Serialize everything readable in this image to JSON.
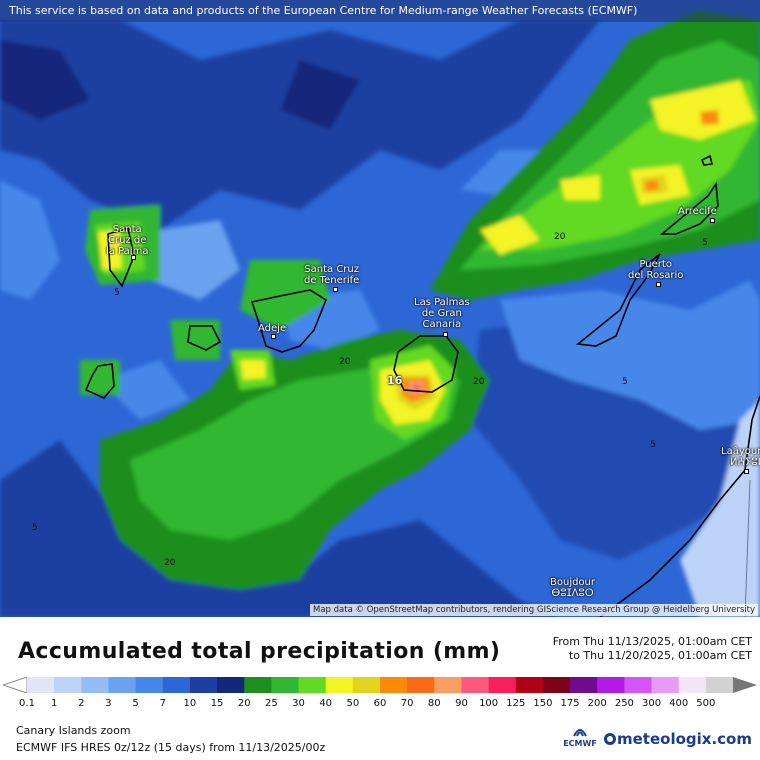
{
  "banner": {
    "text": "This service is based on data and products of the European Centre for Medium-range Weather Forecasts (ECMWF)"
  },
  "map": {
    "attribution": "Map data © OpenStreetMap contributors, rendering GIScience Research Group @ Heidelberg University",
    "cities": [
      {
        "id": "santa-cruz-de-la-palma",
        "label": "Santa\nCruz de\nla Palma"
      },
      {
        "id": "santa-cruz-de-tenerife",
        "label": "Santa Cruz\nde Tenerife"
      },
      {
        "id": "adeje",
        "label": "Adeje"
      },
      {
        "id": "las-palmas",
        "label": "Las Palmas\nde Gran\nCanaria"
      },
      {
        "id": "arrecife",
        "label": "Arrecife"
      },
      {
        "id": "puerto-del-rosario",
        "label": "Puerto\ndel Rosario"
      },
      {
        "id": "laayoune",
        "label": "Laâyoune\nⵍⵄⵢⵓⵏ"
      },
      {
        "id": "boujdour",
        "label": "Boujdour\nⴱⵓⵊⴷⵓⵔ"
      }
    ],
    "isoline_labels": [
      "20",
      "5",
      "20",
      "20",
      "5",
      "5",
      "5",
      "20",
      "5",
      "20"
    ],
    "marker_label": "16"
  },
  "legend": {
    "title": "Accumulated total precipitation (mm)",
    "from": "From Thu 11/13/2025, 01:00am CET",
    "to": "to Thu 11/20/2025, 01:00am CET",
    "ticks": [
      "0.1",
      "1",
      "2",
      "3",
      "5",
      "7",
      "10",
      "15",
      "20",
      "25",
      "30",
      "40",
      "50",
      "60",
      "70",
      "80",
      "90",
      "100",
      "125",
      "150",
      "175",
      "200",
      "250",
      "300",
      "400",
      "500"
    ],
    "colors": [
      "#e3e4f4",
      "#bcd2f7",
      "#95bdf5",
      "#6aa2ef",
      "#4687e9",
      "#2d67d6",
      "#1c3fa1",
      "#12287a",
      "#1e8e1e",
      "#32b732",
      "#62d922",
      "#f3f325",
      "#e0d41c",
      "#fa8a08",
      "#fb6a16",
      "#fa9d62",
      "#fb5a7e",
      "#f8205a",
      "#b10016",
      "#7d0418",
      "#6f0c8e",
      "#b41ae6",
      "#d455f5",
      "#e89af6",
      "#f3e4f8",
      "#d2d2d2"
    ],
    "edge_left_color": "#ffffff",
    "edge_right_color": "#777777"
  },
  "info": {
    "region": "Canary Islands zoom",
    "model": "ECMWF IFS HRES 0z/12z (15 days) from  11/13/2025/00z"
  },
  "logos": {
    "ecmwf": "ECMWF",
    "meteologix": "meteologix.com"
  }
}
